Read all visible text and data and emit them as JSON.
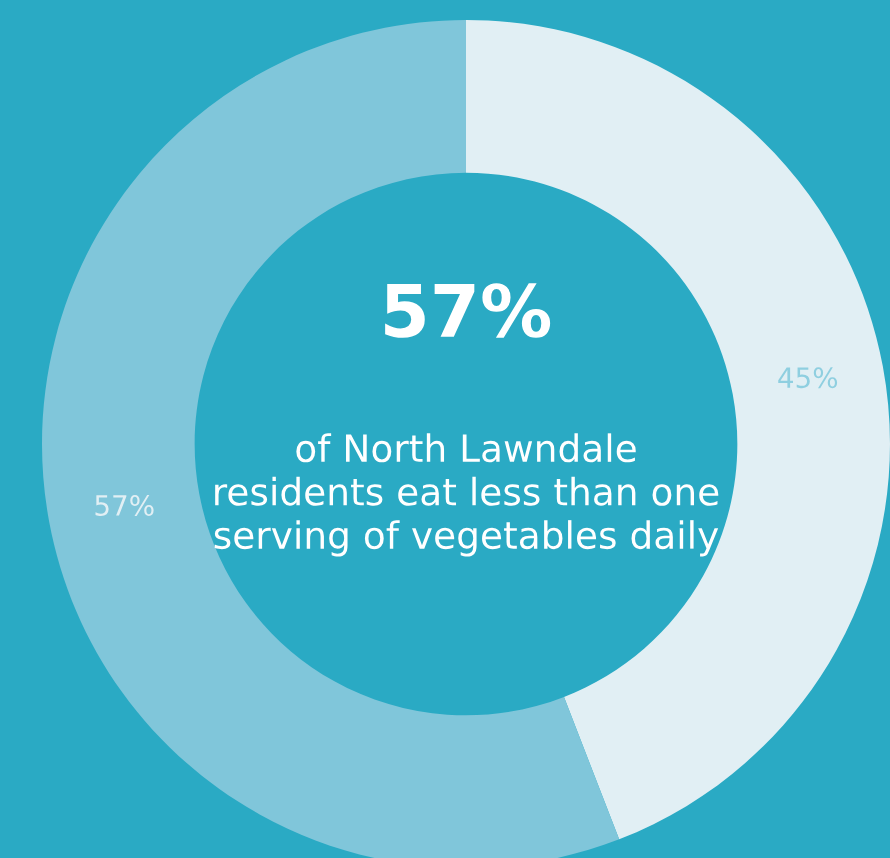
{
  "chart_data": {
    "type": "donut",
    "title": "57%",
    "subtitle": "of North Lawndale residents eat less than one serving of vegetables daily",
    "categories": [
      null,
      null
    ],
    "values": [
      45,
      57
    ],
    "colors": [
      "#e1eff4",
      "#80c6da"
    ],
    "value_labels": [
      "45%",
      "57%"
    ]
  }
}
